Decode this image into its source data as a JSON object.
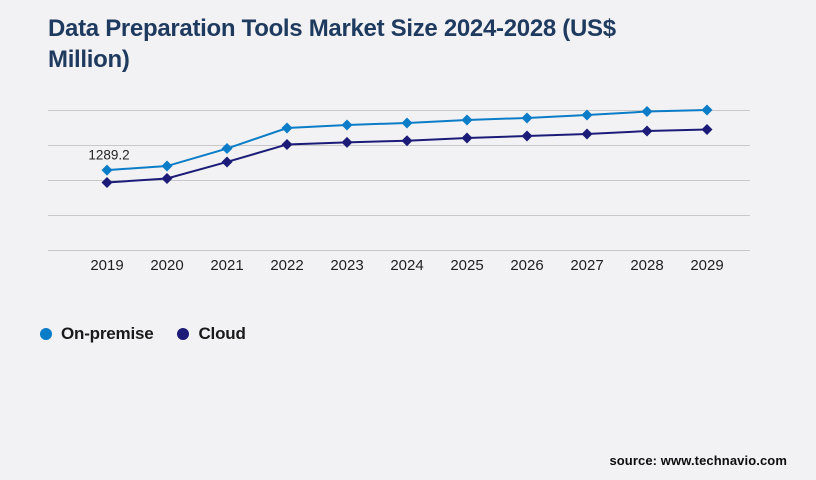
{
  "page": {
    "background": "#f2f2f4",
    "source": "source: www.technavio.com"
  },
  "legend": {
    "items": [
      {
        "label": "On-premise",
        "color": "#0b7cc7"
      },
      {
        "label": "Cloud",
        "color": "#1c1c78"
      }
    ]
  },
  "chart_data": {
    "type": "line",
    "title": "Data Preparation Tools Market Size 2024-2028 (US$ Million)",
    "title_color": "#1f3a5f",
    "x": [
      "2019",
      "2020",
      "2021",
      "2022",
      "2023",
      "2024",
      "2025",
      "2026",
      "2027",
      "2028",
      "2029"
    ],
    "series": [
      {
        "name": "On-premise",
        "color": "#0b7cc7",
        "marker": "diamond",
        "values": [
          1289.2,
          1324,
          1474,
          1650,
          1676,
          1693,
          1719,
          1736,
          1761,
          1791,
          1804
        ]
      },
      {
        "name": "Cloud",
        "color": "#1c1c78",
        "marker": "diamond",
        "values": [
          1183,
          1217,
          1359,
          1509,
          1527,
          1541,
          1564,
          1581,
          1599,
          1624,
          1637
        ]
      }
    ],
    "annotations": [
      {
        "series": "On-premise",
        "x": "2019",
        "text": "1289.2"
      }
    ],
    "ylabel": "",
    "xlabel": "",
    "ylim": [
      600,
      1950
    ],
    "gridline_values": [
      600,
      900,
      1200,
      1500,
      1800
    ],
    "grid": "horizontal-only",
    "gridline_color": "#c8c8c8",
    "legend_position": "bottom-left"
  }
}
